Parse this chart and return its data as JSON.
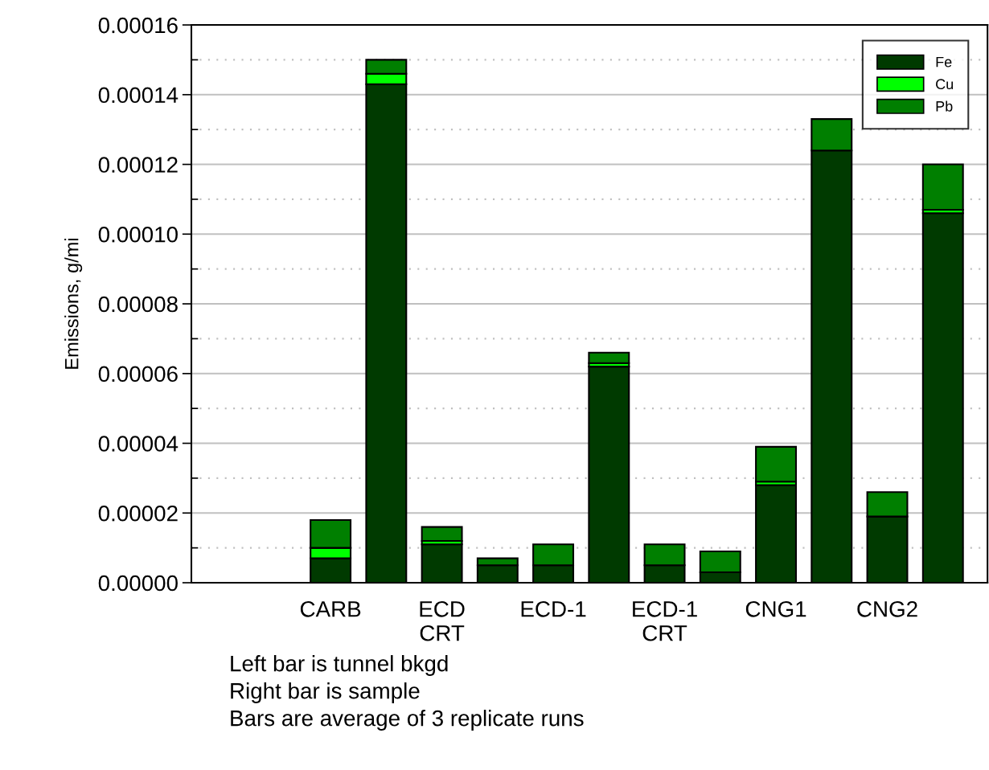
{
  "chart_data": {
    "type": "bar",
    "stacked": true,
    "ylabel": "Emissions, g/mi",
    "categories": [
      "CARB",
      null,
      "ECD\nCRT",
      null,
      "ECD-1",
      null,
      "ECD-1\nCRT",
      null,
      "CNG1",
      null,
      "CNG2",
      null
    ],
    "series": [
      {
        "name": "Fe",
        "color": "#003a00",
        "values": [
          7e-06,
          0.000143,
          1.1e-05,
          5e-06,
          5e-06,
          6.2e-05,
          5e-06,
          3e-06,
          2.8e-05,
          0.000124,
          1.9e-05,
          0.000106
        ]
      },
      {
        "name": "Cu",
        "color": "#00ff00",
        "values": [
          3e-06,
          3e-06,
          1e-06,
          null,
          null,
          1e-06,
          null,
          null,
          1e-06,
          null,
          null,
          1e-06
        ]
      },
      {
        "name": "Pb",
        "color": "#007f00",
        "values": [
          8e-06,
          4e-06,
          4e-06,
          2e-06,
          6e-06,
          3e-06,
          6e-06,
          6e-06,
          1e-05,
          9e-06,
          7e-06,
          1.3e-05
        ]
      }
    ],
    "ylim": [
      0,
      0.00016
    ],
    "yticks": [
      {
        "value": 0,
        "label": "0.00000"
      },
      {
        "value": 1e-05,
        "label": null
      },
      {
        "value": 2e-05,
        "label": "0.00002"
      },
      {
        "value": 3e-05,
        "label": null
      },
      {
        "value": 4e-05,
        "label": "0.00004"
      },
      {
        "value": 5e-05,
        "label": null
      },
      {
        "value": 6e-05,
        "label": "0.00006"
      },
      {
        "value": 7e-05,
        "label": null
      },
      {
        "value": 8e-05,
        "label": "0.00008"
      },
      {
        "value": 9e-05,
        "label": null
      },
      {
        "value": 0.0001,
        "label": "0.00010"
      },
      {
        "value": 0.00011,
        "label": null
      },
      {
        "value": 0.00012,
        "label": "0.00012"
      },
      {
        "value": 0.00013,
        "label": null
      },
      {
        "value": 0.00014,
        "label": "0.00014"
      },
      {
        "value": 0.00015,
        "label": null
      },
      {
        "value": 0.00016,
        "label": "0.00016"
      }
    ],
    "grid": "y",
    "legend": "top right",
    "annotations": [
      "Left bar is tunnel bkgd",
      "Right bar is sample",
      "Bars are average of 3 replicate runs"
    ]
  }
}
